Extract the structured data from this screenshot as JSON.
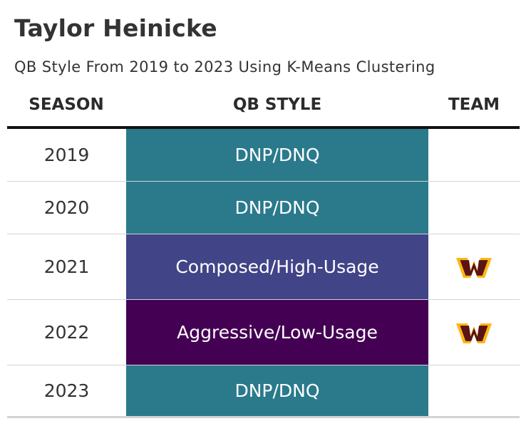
{
  "title": "Taylor Heinicke",
  "subtitle": "QB Style From 2019 to 2023 Using K-Means Clustering",
  "chart_data": {
    "type": "table",
    "title": "Taylor Heinicke",
    "subtitle": "QB Style From 2019 to 2023 Using K-Means Clustering",
    "columns": [
      "SEASON",
      "QB STYLE",
      "TEAM"
    ],
    "rows": [
      {
        "season": "2019",
        "qb_style": "DNP/DNQ",
        "team_icon": "",
        "color": "#2a7a8c"
      },
      {
        "season": "2020",
        "qb_style": "DNP/DNQ",
        "team_icon": "",
        "color": "#2a7a8c"
      },
      {
        "season": "2021",
        "qb_style": "Composed/High-Usage",
        "team_icon": "washington-commanders-logo-icon",
        "color": "#414487"
      },
      {
        "season": "2022",
        "qb_style": "Aggressive/Low-Usage",
        "team_icon": "washington-commanders-logo-icon",
        "color": "#440154"
      },
      {
        "season": "2023",
        "qb_style": "DNP/DNQ",
        "team_icon": "",
        "color": "#2a7a8c"
      }
    ]
  },
  "colors": {
    "dnp": "#2a7a8c",
    "composed_high_usage": "#414487",
    "aggressive_low_usage": "#440154",
    "logo_maroon": "#5a1414",
    "logo_gold": "#ffb612"
  }
}
